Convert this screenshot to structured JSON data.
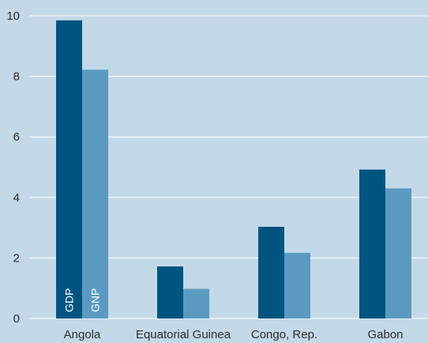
{
  "chart_data": {
    "type": "bar",
    "categories": [
      "Angola",
      "Equatorial Guinea",
      "Congo, Rep.",
      "Gabon"
    ],
    "series": [
      {
        "name": "GDP",
        "color": "#005580",
        "values": [
          9.85,
          1.72,
          3.03,
          4.92
        ]
      },
      {
        "name": "GNP",
        "color": "#5b9bc1",
        "values": [
          8.22,
          0.98,
          2.17,
          4.3
        ]
      }
    ],
    "ylim": [
      0,
      10
    ],
    "yticks": [
      0,
      2,
      4,
      6,
      8,
      10
    ],
    "title": "",
    "xlabel": "",
    "ylabel": "",
    "grid": true,
    "legend": "inline labels inside first category bars",
    "colors": {
      "background": "#c3d9e8",
      "grid": "#ffffff",
      "text": "#2b2b2b"
    }
  }
}
